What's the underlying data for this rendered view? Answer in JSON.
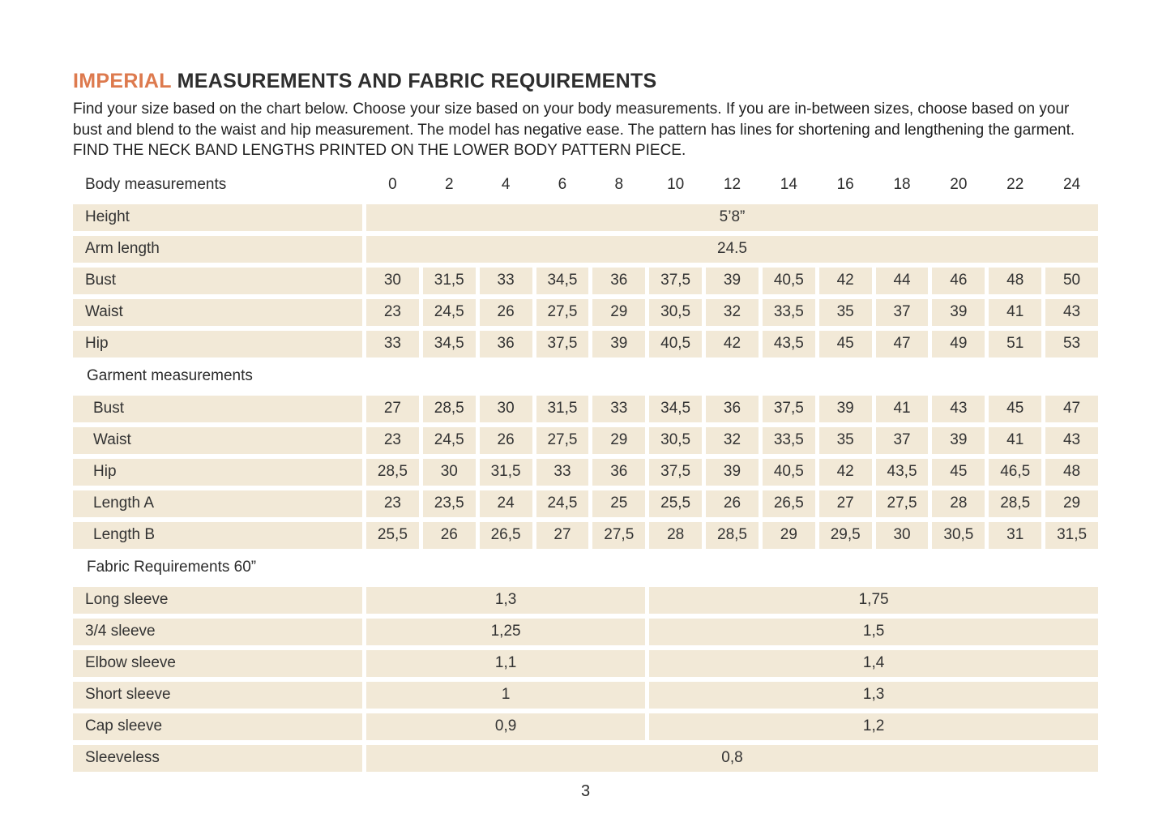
{
  "title": {
    "highlight": "IMPERIAL",
    "rest": " MEASUREMENTS AND FABRIC REQUIREMENTS"
  },
  "intro": "Find your size based on the chart below. Choose your size based on your body measurements. If you are in-between sizes, choose based on your bust and blend to the waist and hip measurement. The model has negative ease. The pattern has lines for shortening and lengthening the garment. FIND THE NECK BAND LENGTHS PRINTED ON THE LOWER BODY PATTERN PIECE.",
  "table": {
    "header_label": "Body measurements",
    "sizes": [
      "0",
      "2",
      "4",
      "6",
      "8",
      "10",
      "12",
      "14",
      "16",
      "18",
      "20",
      "22",
      "24"
    ],
    "body_rows": [
      {
        "label": "Height",
        "value": "5’8”"
      },
      {
        "label": "Arm length",
        "value": "24.5"
      },
      {
        "label": "Bust",
        "values": [
          "30",
          "31,5",
          "33",
          "34,5",
          "36",
          "37,5",
          "39",
          "40,5",
          "42",
          "44",
          "46",
          "48",
          "50"
        ]
      },
      {
        "label": "Waist",
        "values": [
          "23",
          "24,5",
          "26",
          "27,5",
          "29",
          "30,5",
          "32",
          "33,5",
          "35",
          "37",
          "39",
          "41",
          "43"
        ]
      },
      {
        "label": "Hip",
        "values": [
          "33",
          "34,5",
          "36",
          "37,5",
          "39",
          "40,5",
          "42",
          "43,5",
          "45",
          "47",
          "49",
          "51",
          "53"
        ]
      }
    ],
    "garment_header": "Garment measurements",
    "garment_rows": [
      {
        "label": "Bust",
        "values": [
          "27",
          "28,5",
          "30",
          "31,5",
          "33",
          "34,5",
          "36",
          "37,5",
          "39",
          "41",
          "43",
          "45",
          "47"
        ]
      },
      {
        "label": "Waist",
        "values": [
          "23",
          "24,5",
          "26",
          "27,5",
          "29",
          "30,5",
          "32",
          "33,5",
          "35",
          "37",
          "39",
          "41",
          "43"
        ]
      },
      {
        "label": "Hip",
        "values": [
          "28,5",
          "30",
          "31,5",
          "33",
          "36",
          "37,5",
          "39",
          "40,5",
          "42",
          "43,5",
          "45",
          "46,5",
          "48"
        ]
      },
      {
        "label": "Length A",
        "values": [
          "23",
          "23,5",
          "24",
          "24,5",
          "25",
          "25,5",
          "26",
          "26,5",
          "27",
          "27,5",
          "28",
          "28,5",
          "29"
        ]
      },
      {
        "label": "Length B",
        "values": [
          "25,5",
          "26",
          "26,5",
          "27",
          "27,5",
          "28",
          "28,5",
          "29",
          "29,5",
          "30",
          "30,5",
          "31",
          "31,5"
        ]
      }
    ],
    "fabric_header": "Fabric Requirements  60”",
    "fabric_rows": [
      {
        "label": "Long sleeve",
        "left": "1,3",
        "right": "1,75"
      },
      {
        "label": "3/4 sleeve",
        "left": "1,25",
        "right": "1,5"
      },
      {
        "label": "Elbow sleeve",
        "left": "1,1",
        "right": "1,4"
      },
      {
        "label": "Short sleeve",
        "left": "1",
        "right": "1,3"
      },
      {
        "label": "Cap sleeve",
        "left": "0,9",
        "right": "1,2"
      },
      {
        "label": "Sleeveless",
        "value": "0,8"
      }
    ]
  },
  "page_number": "3",
  "colors": {
    "accent": "#dd7a4e",
    "cell_bg": "#f2e9d7",
    "text": "#2e2e2e"
  }
}
